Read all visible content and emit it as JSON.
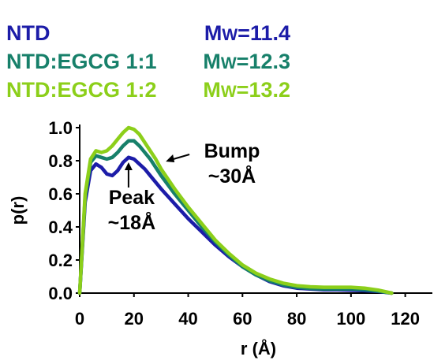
{
  "legend": [
    {
      "name": "NTD",
      "mw_prefix": "M",
      "mw_sub": "W",
      "mw_value": "=11.4",
      "color": "#1c1ca8"
    },
    {
      "name": "NTD:EGCG 1:1",
      "mw_prefix": "M",
      "mw_sub": "W",
      "mw_value": "=12.3",
      "color": "#17806a"
    },
    {
      "name": "NTD:EGCG 1:2",
      "mw_prefix": "M",
      "mw_sub": "W",
      "mw_value": "=13.2",
      "color": "#8ccf1a"
    }
  ],
  "chart_data": {
    "type": "line",
    "xlabel": "r (Å)",
    "ylabel": "p(r)",
    "xlim": [
      0,
      130
    ],
    "ylim": [
      0,
      1.0
    ],
    "xticks": [
      "0",
      "20",
      "40",
      "60",
      "80",
      "100",
      "120"
    ],
    "yticks": [
      "0.0",
      "0.2",
      "0.4",
      "0.6",
      "0.8",
      "1.0"
    ],
    "grid": false,
    "series": [
      {
        "name": "NTD",
        "color": "#1c1ca8",
        "x": [
          0,
          2,
          4,
          6,
          8,
          10,
          12,
          14,
          16,
          18,
          20,
          22,
          24,
          26,
          28,
          30,
          35,
          40,
          45,
          50,
          55,
          60,
          65,
          70,
          75,
          80,
          85,
          90,
          95,
          100,
          105,
          110,
          115
        ],
        "y": [
          0.0,
          0.55,
          0.74,
          0.78,
          0.76,
          0.72,
          0.71,
          0.74,
          0.79,
          0.82,
          0.81,
          0.78,
          0.75,
          0.71,
          0.67,
          0.63,
          0.54,
          0.45,
          0.37,
          0.29,
          0.22,
          0.16,
          0.11,
          0.07,
          0.045,
          0.03,
          0.025,
          0.02,
          0.02,
          0.018,
          0.015,
          0.01,
          0.0
        ]
      },
      {
        "name": "NTD:EGCG 1:1",
        "color": "#17806a",
        "x": [
          0,
          2,
          4,
          6,
          8,
          10,
          12,
          14,
          16,
          18,
          20,
          22,
          24,
          26,
          28,
          30,
          35,
          40,
          45,
          50,
          55,
          60,
          65,
          70,
          75,
          80,
          85,
          90,
          95,
          100,
          105,
          110,
          115
        ],
        "y": [
          0.0,
          0.58,
          0.79,
          0.83,
          0.82,
          0.81,
          0.82,
          0.85,
          0.89,
          0.92,
          0.92,
          0.89,
          0.85,
          0.81,
          0.76,
          0.71,
          0.6,
          0.5,
          0.4,
          0.31,
          0.23,
          0.16,
          0.11,
          0.075,
          0.05,
          0.035,
          0.028,
          0.025,
          0.025,
          0.025,
          0.02,
          0.012,
          0.0
        ]
      },
      {
        "name": "NTD:EGCG 1:2",
        "color": "#8ccf1a",
        "x": [
          0,
          2,
          4,
          6,
          8,
          10,
          12,
          14,
          16,
          18,
          20,
          22,
          24,
          26,
          28,
          30,
          35,
          40,
          45,
          50,
          55,
          60,
          65,
          70,
          75,
          80,
          85,
          90,
          95,
          100,
          105,
          110,
          115
        ],
        "y": [
          0.0,
          0.6,
          0.81,
          0.86,
          0.85,
          0.86,
          0.89,
          0.93,
          0.97,
          1.0,
          0.99,
          0.96,
          0.91,
          0.86,
          0.81,
          0.75,
          0.63,
          0.52,
          0.42,
          0.32,
          0.24,
          0.17,
          0.12,
          0.085,
          0.06,
          0.045,
          0.038,
          0.035,
          0.035,
          0.035,
          0.03,
          0.018,
          0.0
        ]
      }
    ],
    "annotations": [
      {
        "label_lines": [
          "Peak",
          "~18Å"
        ],
        "x": 18,
        "y": 0.8,
        "arrow": "up"
      },
      {
        "label_lines": [
          "Bump",
          "~30Å"
        ],
        "x": 30,
        "y": 0.78,
        "arrow": "left"
      }
    ]
  }
}
